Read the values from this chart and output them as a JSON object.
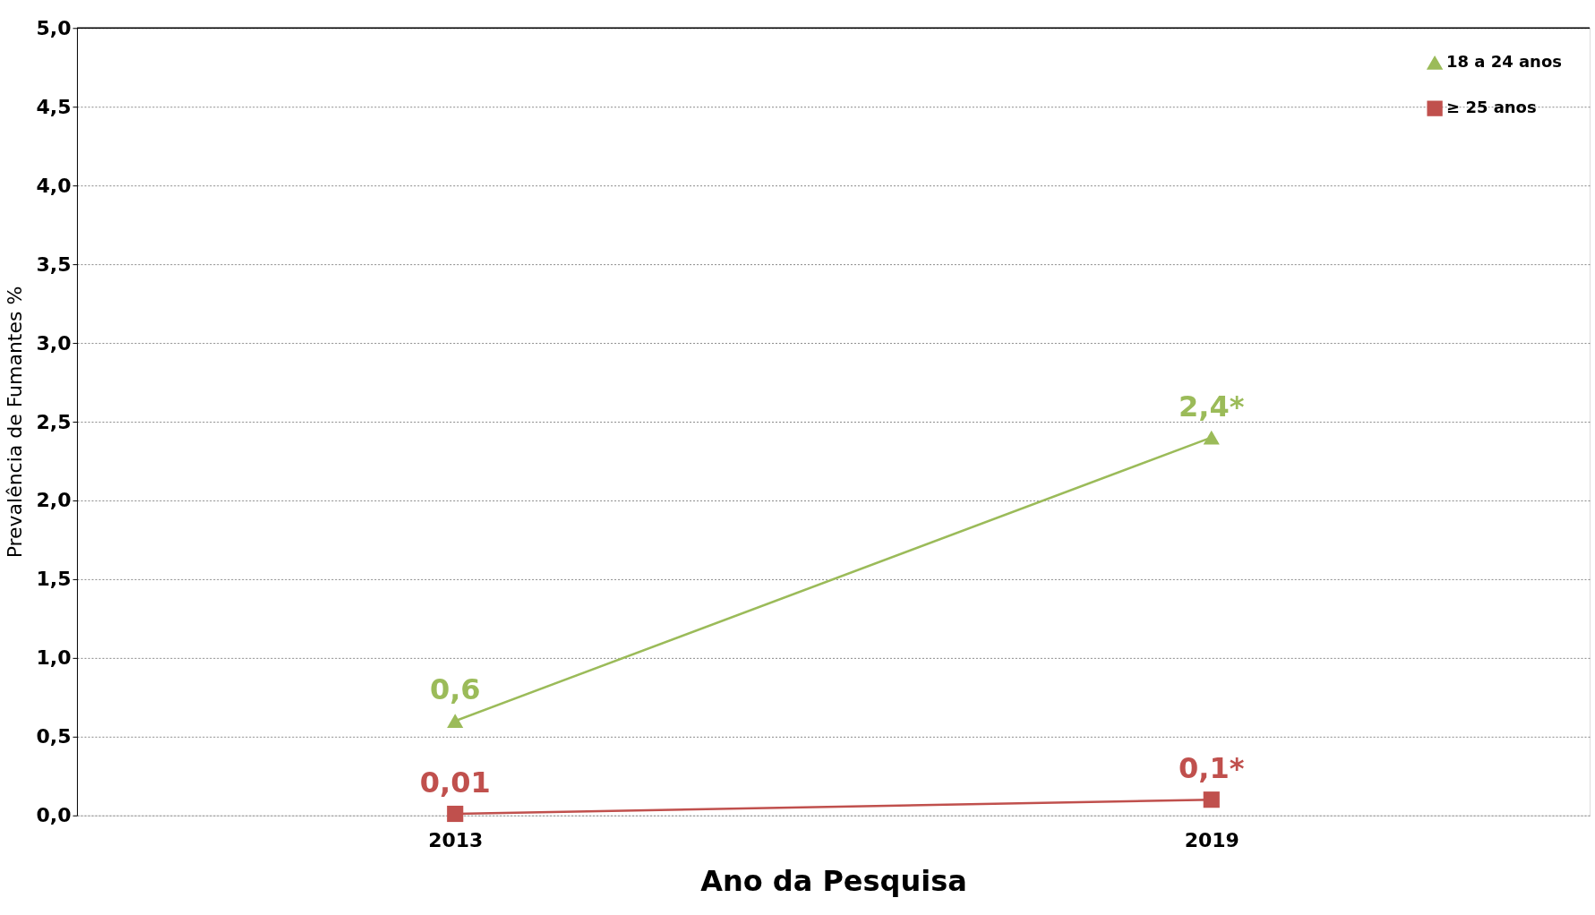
{
  "chart_data": {
    "type": "line",
    "xlabel": "Ano da Pesquisa",
    "ylabel": "Prevalência de Fumantes %",
    "categories": [
      "2013",
      "2019"
    ],
    "series": [
      {
        "name": "18 a 24 anos",
        "color": "#9bbb59",
        "marker": "triangle",
        "values": [
          0.6,
          2.4
        ],
        "value_labels": [
          "0,6",
          "2,4*"
        ]
      },
      {
        "name": "≥ 25 anos",
        "color": "#c0504d",
        "marker": "square",
        "values": [
          0.01,
          0.1
        ],
        "value_labels": [
          "0,01",
          "0,1*"
        ]
      }
    ],
    "ylim": [
      0,
      5
    ],
    "yticks": [
      {
        "value": 0,
        "label": "0,0"
      },
      {
        "value": 0.5,
        "label": "0,5"
      },
      {
        "value": 1,
        "label": "1,0"
      },
      {
        "value": 1.5,
        "label": "1,5"
      },
      {
        "value": 2,
        "label": "2,0"
      },
      {
        "value": 2.5,
        "label": "2,5"
      },
      {
        "value": 3,
        "label": "3,0"
      },
      {
        "value": 3.5,
        "label": "3,5"
      },
      {
        "value": 4,
        "label": "4,0"
      },
      {
        "value": 4.5,
        "label": "4,5"
      },
      {
        "value": 5,
        "label": "5,0"
      }
    ],
    "grid": "y",
    "legend": "top right",
    "line_style": "solid"
  }
}
